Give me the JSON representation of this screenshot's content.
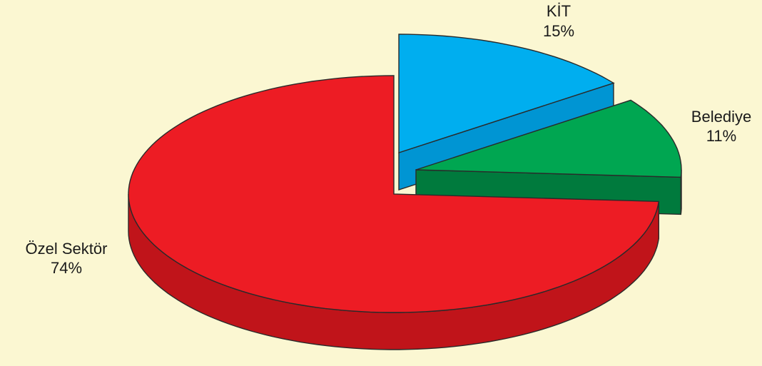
{
  "chart_data": {
    "type": "pie",
    "style": "3d-exploded",
    "categories": [
      "Özel Sektör",
      "KİT",
      "Belediye"
    ],
    "values": [
      74,
      15,
      11
    ],
    "labels": [
      {
        "name": "Özel Sektör",
        "percent": "74%"
      },
      {
        "name": "KİT",
        "percent": "15%"
      },
      {
        "name": "Belediye",
        "percent": "11%"
      }
    ],
    "colors": {
      "Özel Sektör": {
        "top": "#ed1c24",
        "side": "#c0141a"
      },
      "KİT": {
        "top": "#00aeef",
        "side": "#0095d3"
      },
      "Belediye": {
        "top": "#00a651",
        "side": "#007a3d"
      }
    },
    "background": "#fbf7d2"
  }
}
